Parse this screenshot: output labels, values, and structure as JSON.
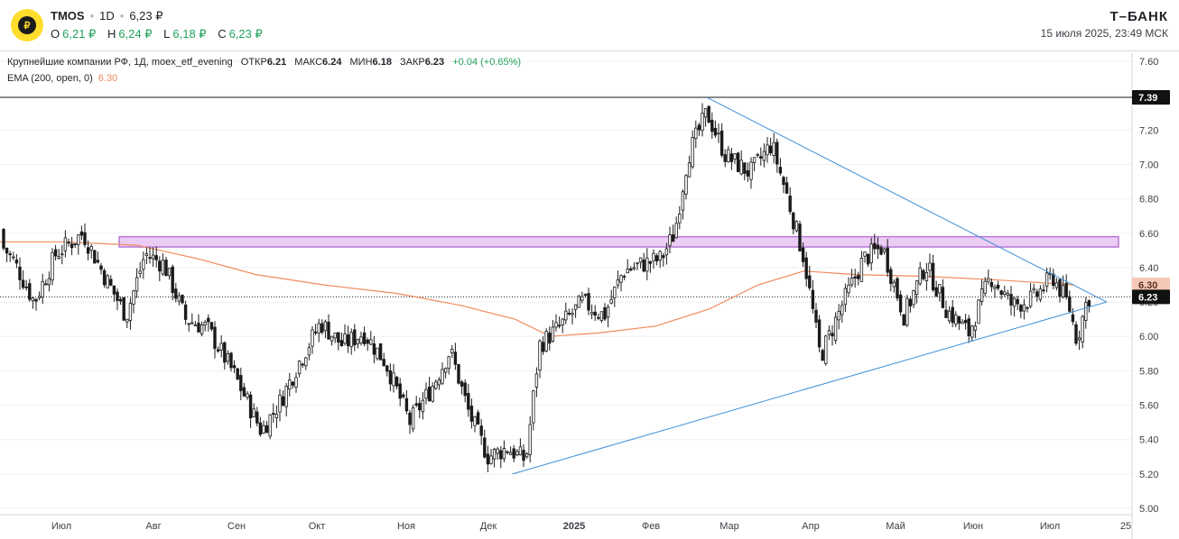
{
  "header": {
    "ticker": "TMOS",
    "interval": "1D",
    "last_price": "6,23 ₽",
    "ohlc": [
      {
        "key": "O",
        "value": "6,21 ₽"
      },
      {
        "key": "H",
        "value": "6,24 ₽"
      },
      {
        "key": "L",
        "value": "6,18 ₽"
      },
      {
        "key": "C",
        "value": "6,23 ₽"
      }
    ],
    "brand": "Т–БАНК",
    "datetime": "15 июля 2025, 23:49 МСК"
  },
  "legend": {
    "line1_prefix": "Крупнейшие компании РФ, 1Д, moex_etf_evening",
    "open_label": "ОТКР",
    "open": "6.21",
    "high_label": "МАКС",
    "high": "6.24",
    "low_label": "МИН",
    "low": "6.18",
    "close_label": "ЗАКР",
    "close": "6.23",
    "change": "+0.04 (+0.65%)",
    "ema_label": "EMA (200, open, 0)",
    "ema_value": "6.30"
  },
  "colors": {
    "up": "#22a25a",
    "candle": "#1b1b1b",
    "ema": "#f08a5d",
    "trendline": "#3d8fd8",
    "zone_fill": "#e8c3f2",
    "zone_border": "#b878d6",
    "grid": "#eef0f2"
  },
  "chart_data": {
    "type": "candlestick",
    "ylim": [
      5.0,
      7.6
    ],
    "y_ticks": [
      "7.60",
      "7.40",
      "7.20",
      "7.00",
      "6.80",
      "6.60",
      "6.40",
      "6.20",
      "6.00",
      "5.80",
      "5.60",
      "5.40",
      "5.20",
      "5.00"
    ],
    "x_labels": [
      "Июл",
      "Авг",
      "Сен",
      "Окт",
      "Ноя",
      "Дек",
      "2025",
      "Фев",
      "Мар",
      "Апр",
      "Май",
      "Июн",
      "Июл",
      "25"
    ],
    "price_labels": [
      {
        "value": 7.39,
        "text": "7.39",
        "style": "dark"
      },
      {
        "value": 6.3,
        "text": "6.30",
        "style": "ema"
      },
      {
        "value": 6.23,
        "text": "6.23",
        "style": "dark"
      }
    ],
    "horizontal_line": 7.39,
    "last_price_line": 6.23,
    "resistance_zone": [
      6.52,
      6.58
    ],
    "trendlines": [
      {
        "from": [
          "2024-12-14",
          5.2
        ],
        "to": [
          "2025-07-22",
          6.2
        ]
      },
      {
        "from": [
          "2025-02-24",
          7.39
        ],
        "to": [
          "2025-07-22",
          6.2
        ]
      }
    ],
    "close_path": [
      [
        "2024-06-03",
        6.62
      ],
      [
        "2024-06-12",
        6.45
      ],
      [
        "2024-06-20",
        6.2
      ],
      [
        "2024-06-28",
        6.48
      ],
      [
        "2024-07-08",
        6.6
      ],
      [
        "2024-07-16",
        6.35
      ],
      [
        "2024-07-24",
        6.12
      ],
      [
        "2024-07-31",
        6.48
      ],
      [
        "2024-08-07",
        6.42
      ],
      [
        "2024-08-15",
        6.1
      ],
      [
        "2024-08-23",
        6.05
      ],
      [
        "2024-09-02",
        5.78
      ],
      [
        "2024-09-12",
        5.45
      ],
      [
        "2024-09-19",
        5.62
      ],
      [
        "2024-09-26",
        5.85
      ],
      [
        "2024-10-04",
        6.08
      ],
      [
        "2024-10-12",
        5.95
      ],
      [
        "2024-10-20",
        6.02
      ],
      [
        "2024-10-28",
        5.85
      ],
      [
        "2024-11-06",
        5.5
      ],
      [
        "2024-11-14",
        5.7
      ],
      [
        "2024-11-21",
        5.92
      ],
      [
        "2024-11-28",
        5.55
      ],
      [
        "2024-12-05",
        5.3
      ],
      [
        "2024-12-12",
        5.35
      ],
      [
        "2024-12-19",
        5.28
      ],
      [
        "2024-12-24",
        5.95
      ],
      [
        "2024-12-31",
        6.05
      ],
      [
        "2025-01-09",
        6.2
      ],
      [
        "2025-01-17",
        6.12
      ],
      [
        "2025-01-24",
        6.38
      ],
      [
        "2025-01-31",
        6.42
      ],
      [
        "2025-02-07",
        6.45
      ],
      [
        "2025-02-12",
        6.6
      ],
      [
        "2025-02-17",
        7.05
      ],
      [
        "2025-02-24",
        7.3
      ],
      [
        "2025-03-03",
        7.05
      ],
      [
        "2025-03-12",
        6.95
      ],
      [
        "2025-03-20",
        7.12
      ],
      [
        "2025-03-26",
        6.8
      ],
      [
        "2025-04-01",
        6.45
      ],
      [
        "2025-04-07",
        5.88
      ],
      [
        "2025-04-15",
        6.18
      ],
      [
        "2025-04-23",
        6.45
      ],
      [
        "2025-04-30",
        6.52
      ],
      [
        "2025-05-08",
        6.12
      ],
      [
        "2025-05-16",
        6.42
      ],
      [
        "2025-05-24",
        6.15
      ],
      [
        "2025-06-01",
        6.02
      ],
      [
        "2025-06-09",
        6.35
      ],
      [
        "2025-06-17",
        6.18
      ],
      [
        "2025-06-25",
        6.22
      ],
      [
        "2025-07-02",
        6.35
      ],
      [
        "2025-07-08",
        6.18
      ],
      [
        "2025-07-11",
        5.98
      ],
      [
        "2025-07-15",
        6.23
      ]
    ],
    "ema_path": [
      [
        "2024-06-03",
        6.55
      ],
      [
        "2024-07-01",
        6.55
      ],
      [
        "2024-07-28",
        6.53
      ],
      [
        "2024-08-20",
        6.45
      ],
      [
        "2024-09-10",
        6.36
      ],
      [
        "2024-10-05",
        6.3
      ],
      [
        "2024-11-01",
        6.25
      ],
      [
        "2024-11-25",
        6.18
      ],
      [
        "2024-12-15",
        6.1
      ],
      [
        "2024-12-28",
        6.0
      ],
      [
        "2025-01-15",
        6.02
      ],
      [
        "2025-02-05",
        6.06
      ],
      [
        "2025-02-25",
        6.16
      ],
      [
        "2025-03-15",
        6.3
      ],
      [
        "2025-04-01",
        6.38
      ],
      [
        "2025-04-20",
        6.36
      ],
      [
        "2025-05-15",
        6.35
      ],
      [
        "2025-06-10",
        6.33
      ],
      [
        "2025-07-10",
        6.3
      ]
    ]
  }
}
